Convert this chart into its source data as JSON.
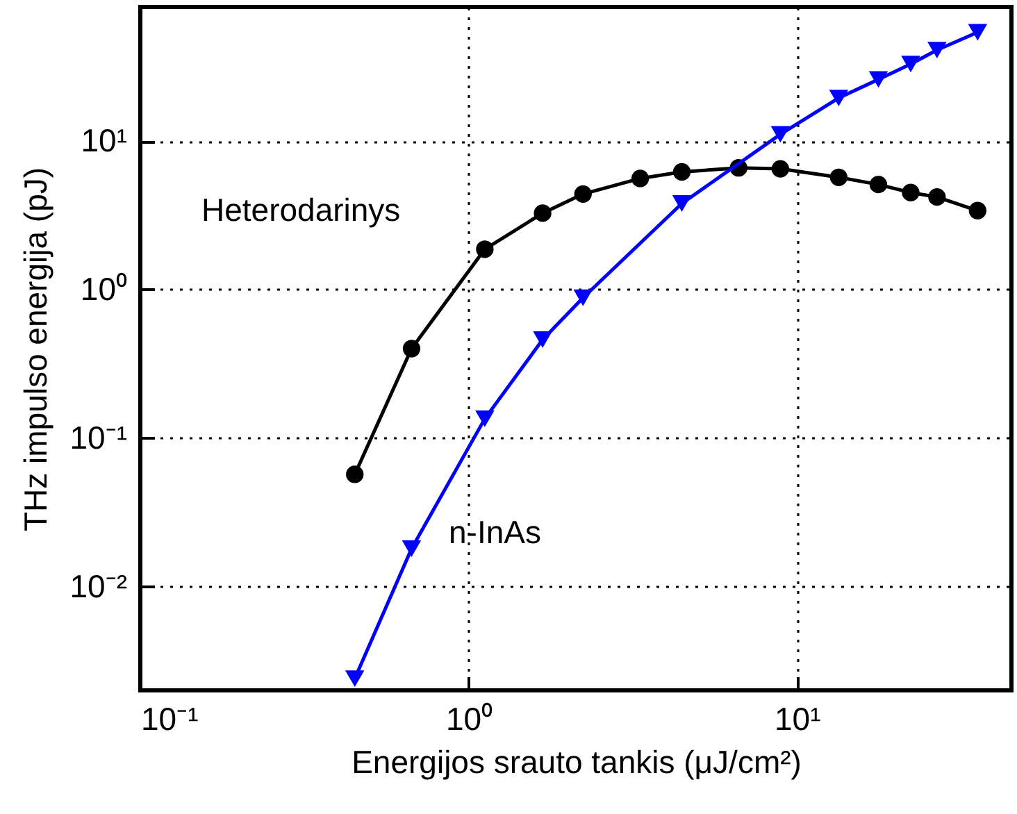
{
  "chart_data": {
    "type": "line",
    "xlabel": "Energijos srauto tankis (μJ/cm²)",
    "ylabel": "THz impulso energija (pJ)",
    "log": "xy",
    "grid": true,
    "legend": false,
    "xlim": [
      0.1,
      45
    ],
    "ylim": [
      0.002,
      80
    ],
    "xticks": [
      {
        "value": 0.1,
        "label": "10⁻¹"
      },
      {
        "value": 1,
        "label": "10⁰"
      },
      {
        "value": 10,
        "label": "10¹"
      }
    ],
    "yticks": [
      {
        "value": 0.01,
        "label": "10⁻²"
      },
      {
        "value": 0.1,
        "label": "10⁻¹"
      },
      {
        "value": 1,
        "label": "10⁰"
      },
      {
        "value": 10,
        "label": "10¹"
      }
    ],
    "series": [
      {
        "name": "Heterodarinys",
        "color": "#000000",
        "marker": "circle",
        "x": [
          0.45,
          0.67,
          1.12,
          1.68,
          2.23,
          3.33,
          4.46,
          6.64,
          8.9,
          13.4,
          17.7,
          22.2,
          26.7,
          35.5
        ],
        "values": [
          0.057,
          0.4,
          1.87,
          3.27,
          4.4,
          5.6,
          6.2,
          6.6,
          6.5,
          5.7,
          5.1,
          4.5,
          4.2,
          3.4
        ]
      },
      {
        "name": "n-InAs",
        "color": "#0000ff",
        "marker": "triangle",
        "x": [
          0.45,
          0.67,
          1.12,
          1.68,
          2.23,
          4.46,
          8.9,
          13.4,
          17.7,
          22.2,
          26.7,
          35.5
        ],
        "values": [
          0.0024,
          0.018,
          0.135,
          0.46,
          0.88,
          3.8,
          11.1,
          19.5,
          26,
          33,
          41,
          54
        ]
      }
    ]
  }
}
